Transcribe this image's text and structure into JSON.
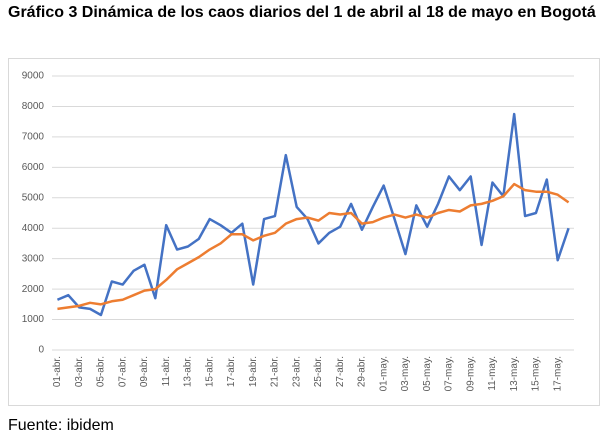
{
  "title": "Gráfico 3 Dinámica de los caos diarios del 1 de abril al 18 de mayo en Bogotá",
  "source": "Fuente: ibidem",
  "chart_data": {
    "type": "line",
    "categories": [
      "01-abr.",
      null,
      "03-abr.",
      null,
      "05-abr.",
      null,
      "07-abr.",
      null,
      "09-abr.",
      null,
      "11-abr.",
      null,
      "13-abr.",
      null,
      "15-abr.",
      null,
      "17-abr.",
      null,
      "19-abr.",
      null,
      "21-abr.",
      null,
      "23-abr.",
      null,
      "25-abr.",
      null,
      "27-abr.",
      null,
      "29-abr.",
      null,
      "01-may.",
      null,
      "03-may.",
      null,
      "05-may.",
      null,
      "07-may.",
      null,
      "09-may.",
      null,
      "11-may.",
      null,
      "13-may.",
      null,
      "15-may.",
      null,
      "17-may.",
      null
    ],
    "series": [
      {
        "color": "#4472c4",
        "values": [
          1650,
          1800,
          1400,
          1350,
          1150,
          2250,
          2150,
          2600,
          2800,
          1700,
          4100,
          3300,
          3400,
          3650,
          4300,
          4100,
          3850,
          4150,
          2150,
          4300,
          4400,
          6400,
          4700,
          4300,
          3500,
          3850,
          4050,
          4800,
          3950,
          4700,
          5400,
          4300,
          3150,
          4750,
          4050,
          4800,
          5700,
          5250,
          5700,
          3450,
          5500,
          5050,
          7750,
          4400,
          4500,
          5600,
          2950,
          4000
        ]
      },
      {
        "color": "#ed7d31",
        "values": [
          1350,
          1400,
          1450,
          1550,
          1500,
          1600,
          1650,
          1800,
          1950,
          2000,
          2300,
          2650,
          2850,
          3050,
          3300,
          3500,
          3800,
          3800,
          3600,
          3750,
          3850,
          4150,
          4300,
          4350,
          4250,
          4500,
          4450,
          4500,
          4150,
          4200,
          4350,
          4450,
          4350,
          4450,
          4350,
          4500,
          4600,
          4550,
          4750,
          4800,
          4900,
          5050,
          5450,
          5250,
          5200,
          5200,
          5100,
          4850
        ]
      }
    ],
    "ylim": [
      0,
      9000
    ],
    "yticks": [
      0,
      1000,
      2000,
      3000,
      4000,
      5000,
      6000,
      7000,
      8000,
      9000
    ],
    "grid": true
  }
}
